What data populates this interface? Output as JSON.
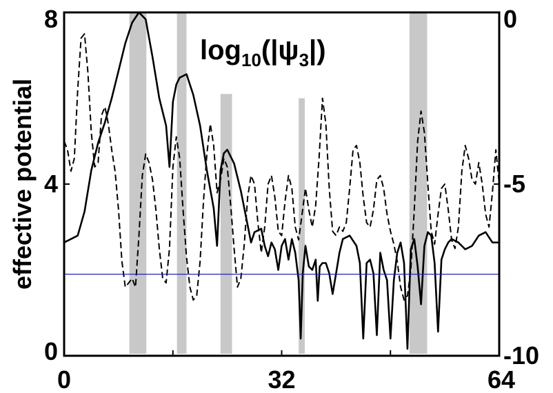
{
  "chart_data": {
    "type": "line",
    "annotation": {
      "prefix": "log",
      "subscript": "10",
      "middle": "(|ψ",
      "psi_index": "3",
      "suffix": "|)"
    },
    "ylabel_left": "effective potential",
    "x_ticks": [
      "0",
      "32",
      "64"
    ],
    "y_left_ticks": [
      "0",
      "4",
      "8"
    ],
    "y_right_ticks": [
      "-10",
      "-5",
      "0"
    ],
    "xlim": [
      0,
      64
    ],
    "ylim_left": [
      0,
      8
    ],
    "ylim_right": [
      -10,
      0
    ],
    "grid": false,
    "highlight_bands": [
      {
        "x_start": 9.6,
        "x_end": 12.1,
        "top": 8.0
      },
      {
        "x_start": 16.6,
        "x_end": 18.0,
        "top": 8.0
      },
      {
        "x_start": 23.0,
        "x_end": 24.7,
        "top": 6.1
      },
      {
        "x_start": 34.5,
        "x_end": 35.4,
        "top": 6.0
      },
      {
        "x_start": 50.8,
        "x_end": 53.4,
        "top": 8.0
      }
    ],
    "reference_line": {
      "y": 1.9,
      "color": "#1f1fbf"
    },
    "series": [
      {
        "id": "potential",
        "style": "dashed",
        "axis": "left",
        "x": [
          0,
          0.5,
          1.0,
          1.5,
          2.0,
          2.5,
          3.0,
          3.5,
          4.0,
          4.5,
          5.0,
          5.5,
          6.0,
          6.5,
          7.0,
          7.5,
          8.0,
          8.5,
          9.0,
          9.5,
          10.0,
          10.5,
          11.0,
          11.5,
          12.0,
          12.5,
          13.0,
          13.5,
          14.0,
          14.5,
          15.0,
          15.5,
          16.0,
          16.5,
          17.0,
          17.5,
          18.0,
          18.5,
          19.0,
          19.5,
          20.0,
          20.5,
          21.0,
          21.5,
          22.0,
          22.5,
          23.0,
          23.5,
          24.0,
          24.5,
          25.0,
          25.5,
          26.0,
          26.5,
          27.0,
          27.5,
          28.0,
          28.5,
          29.0,
          29.5,
          30.0,
          30.5,
          31.0,
          31.5,
          32.0,
          32.5,
          33.0,
          33.5,
          34.0,
          34.5,
          35.0,
          35.5,
          36.0,
          36.5,
          37.0,
          37.5,
          38.0,
          38.5,
          39.0,
          39.5,
          40.0,
          40.5,
          41.0,
          41.5,
          42.0,
          42.5,
          43.0,
          43.5,
          44.0,
          44.5,
          45.0,
          45.5,
          46.0,
          46.5,
          47.0,
          47.5,
          48.0,
          48.5,
          49.0,
          49.5,
          50.0,
          50.5,
          51.0,
          51.5,
          52.0,
          52.5,
          53.0,
          53.5,
          54.0,
          54.5,
          55.0,
          55.5,
          56.0,
          56.5,
          57.0,
          57.5,
          58.0,
          58.5,
          59.0,
          59.5,
          60.0,
          60.5,
          61.0,
          61.5,
          62.0,
          62.5,
          63.0,
          63.5,
          64.0
        ],
        "y": [
          5.0,
          4.8,
          4.3,
          4.6,
          6.2,
          7.4,
          7.5,
          6.6,
          5.2,
          4.4,
          4.5,
          5.6,
          5.8,
          5.4,
          4.8,
          4.3,
          3.4,
          2.2,
          1.6,
          1.7,
          1.8,
          1.6,
          2.8,
          4.2,
          4.7,
          4.5,
          4.1,
          3.4,
          2.5,
          1.8,
          1.7,
          2.5,
          4.4,
          5.1,
          4.6,
          3.4,
          2.3,
          1.6,
          1.3,
          1.4,
          2.2,
          3.6,
          4.7,
          5.4,
          4.9,
          3.8,
          4.1,
          4.6,
          4.4,
          3.5,
          2.5,
          1.6,
          1.8,
          2.6,
          3.7,
          4.2,
          4.0,
          3.1,
          2.4,
          3.0,
          4.0,
          4.2,
          3.7,
          2.9,
          2.8,
          3.6,
          4.2,
          3.9,
          3.0,
          2.7,
          3.3,
          3.9,
          3.4,
          3.0,
          3.5,
          4.6,
          6.0,
          5.4,
          3.9,
          2.9,
          2.8,
          3.0,
          2.9,
          3.1,
          3.9,
          4.8,
          4.9,
          4.5,
          3.7,
          3.1,
          3.0,
          3.4,
          4.1,
          4.2,
          3.9,
          3.3,
          2.9,
          2.6,
          2.2,
          1.6,
          1.3,
          1.4,
          2.0,
          3.4,
          5.0,
          5.7,
          5.2,
          4.0,
          2.9,
          2.6,
          3.3,
          3.9,
          4.0,
          3.4,
          2.7,
          2.5,
          3.0,
          4.3,
          4.9,
          4.6,
          4.1,
          4.0,
          4.5,
          4.0,
          3.3,
          3.0,
          3.8,
          4.8,
          4.0
        ]
      },
      {
        "id": "log10_psi3",
        "style": "solid",
        "axis": "right",
        "x": [
          0,
          1.0,
          2.0,
          3.0,
          4.0,
          5.0,
          6.0,
          7.0,
          8.0,
          9.0,
          10.0,
          11.0,
          12.0,
          13.0,
          14.0,
          15.0,
          15.5,
          16.0,
          16.5,
          17.0,
          18.0,
          19.0,
          20.0,
          21.0,
          22.0,
          22.5,
          23.0,
          23.5,
          24.0,
          25.0,
          26.0,
          27.0,
          27.5,
          28.0,
          29.0,
          29.5,
          30.0,
          30.5,
          31.0,
          31.5,
          32.0,
          32.5,
          33.0,
          33.5,
          34.0,
          34.5,
          34.8,
          35.1,
          35.5,
          36.0,
          36.5,
          37.0,
          37.3,
          37.6,
          38.0,
          38.5,
          39.0,
          39.5,
          40.0,
          40.5,
          41.0,
          42.0,
          43.0,
          43.5,
          44.0,
          44.5,
          45.0,
          45.5,
          46.0,
          46.5,
          47.0,
          47.5,
          48.0,
          48.5,
          49.0,
          49.5,
          50.0,
          50.5,
          51.0,
          51.5,
          52.0,
          52.5,
          53.0,
          53.5,
          54.0,
          54.5,
          55.0,
          55.5,
          56.0,
          56.5,
          57.0,
          58.0,
          59.0,
          60.0,
          61.0,
          62.0,
          63.0,
          64.0
        ],
        "y": [
          -6.7,
          -6.6,
          -6.5,
          -5.8,
          -4.6,
          -3.8,
          -3.2,
          -2.5,
          -1.7,
          -0.9,
          -0.3,
          0.0,
          -0.2,
          -1.3,
          -2.5,
          -3.3,
          -4.5,
          -2.6,
          -2.1,
          -1.9,
          -1.8,
          -2.4,
          -3.3,
          -4.6,
          -5.7,
          -6.8,
          -4.6,
          -4.1,
          -4.0,
          -4.4,
          -5.2,
          -6.2,
          -6.7,
          -6.4,
          -6.3,
          -6.8,
          -7.1,
          -6.7,
          -6.9,
          -7.5,
          -6.8,
          -6.6,
          -7.2,
          -6.6,
          -7.0,
          -7.8,
          -9.5,
          -7.6,
          -6.8,
          -7.4,
          -7.5,
          -7.2,
          -8.4,
          -7.4,
          -7.3,
          -7.3,
          -7.6,
          -8.2,
          -7.6,
          -7.0,
          -6.6,
          -6.5,
          -6.8,
          -7.3,
          -9.5,
          -7.3,
          -7.2,
          -7.6,
          -9.4,
          -7.0,
          -7.5,
          -7.8,
          -9.5,
          -7.8,
          -7.0,
          -6.7,
          -7.3,
          -9.8,
          -6.9,
          -6.6,
          -7.4,
          -8.5,
          -6.8,
          -6.4,
          -6.5,
          -7.3,
          -9.3,
          -7.2,
          -6.9,
          -6.7,
          -6.6,
          -6.7,
          -6.9,
          -6.8,
          -6.5,
          -6.4,
          -6.7,
          -6.7
        ]
      }
    ]
  }
}
